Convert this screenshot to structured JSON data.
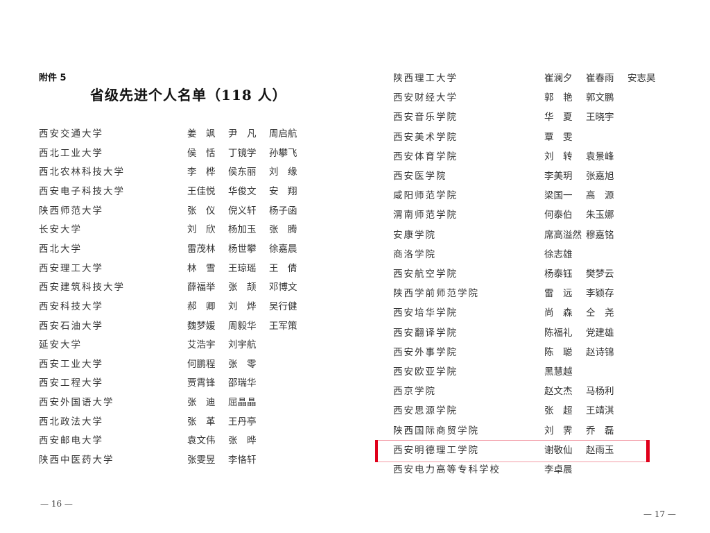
{
  "left_page": {
    "attachment": "附件 5",
    "title": "省级先进个人名单（118 人）",
    "page_number": "— 16 —",
    "rows": [
      {
        "org": "西安交通大学",
        "names": [
          "姜　飒",
          "尹　凡",
          "周启航"
        ]
      },
      {
        "org": "西北工业大学",
        "names": [
          "侯　恬",
          "丁镜学",
          "孙攀飞"
        ]
      },
      {
        "org": "西北农林科技大学",
        "names": [
          "李　桦",
          "侯东丽",
          "刘　缘"
        ]
      },
      {
        "org": "西安电子科技大学",
        "names": [
          "王佳悦",
          "华俊文",
          "安　翔"
        ]
      },
      {
        "org": "陕西师范大学",
        "names": [
          "张　仪",
          "倪义轩",
          "杨子函"
        ]
      },
      {
        "org": "长安大学",
        "names": [
          "刘　欣",
          "杨加玉",
          "张　腾"
        ]
      },
      {
        "org": "西北大学",
        "names": [
          "雷茂林",
          "杨世攀",
          "徐嘉晨"
        ]
      },
      {
        "org": "西安理工大学",
        "names": [
          "林　雪",
          "王琼瑶",
          "王　倩"
        ]
      },
      {
        "org": "西安建筑科技大学",
        "names": [
          "薛福举",
          "张　颉",
          "邓博文"
        ]
      },
      {
        "org": "西安科技大学",
        "names": [
          "郝　卿",
          "刘　烨",
          "吴行健"
        ]
      },
      {
        "org": "西安石油大学",
        "names": [
          "魏梦媛",
          "周毅华",
          "王军策"
        ]
      },
      {
        "org": "延安大学",
        "names": [
          "艾浩宇",
          "刘宇航"
        ]
      },
      {
        "org": "西安工业大学",
        "names": [
          "何鹏程",
          "张　零"
        ]
      },
      {
        "org": "西安工程大学",
        "names": [
          "贾霄锋",
          "邵瑞华"
        ]
      },
      {
        "org": "西安外国语大学",
        "names": [
          "张　迪",
          "屈晶晶"
        ]
      },
      {
        "org": "西北政法大学",
        "names": [
          "张　革",
          "王丹亭"
        ]
      },
      {
        "org": "西安邮电大学",
        "names": [
          "袁文伟",
          "张　晔"
        ]
      },
      {
        "org": "陕西中医药大学",
        "names": [
          "张雯昱",
          "李恪轩"
        ]
      }
    ]
  },
  "right_page": {
    "page_number": "— 17 —",
    "highlight_color": "#e0001b",
    "rows": [
      {
        "org": "陕西理工大学",
        "names": [
          "崔澜夕",
          "崔春雨",
          "安志昊"
        ]
      },
      {
        "org": "西安财经大学",
        "names": [
          "郭　艳",
          "郭文鹏"
        ]
      },
      {
        "org": "西安音乐学院",
        "names": [
          "华　夏",
          "王晓宇"
        ]
      },
      {
        "org": "西安美术学院",
        "names": [
          "覃　雯"
        ]
      },
      {
        "org": "西安体育学院",
        "names": [
          "刘　转",
          "袁景峰"
        ]
      },
      {
        "org": "西安医学院",
        "names": [
          "李美玥",
          "张嘉旭"
        ]
      },
      {
        "org": "咸阳师范学院",
        "names": [
          "梁国一",
          "高　源"
        ]
      },
      {
        "org": "渭南师范学院",
        "names": [
          "何泰伯",
          "朱玉娜"
        ]
      },
      {
        "org": "安康学院",
        "names": [
          "席高溢然",
          "穆嘉铭"
        ]
      },
      {
        "org": "商洛学院",
        "names": [
          "徐志雄"
        ]
      },
      {
        "org": "西安航空学院",
        "names": [
          "杨泰钰",
          "樊梦云"
        ]
      },
      {
        "org": "陕西学前师范学院",
        "names": [
          "雷　远",
          "李颖存"
        ]
      },
      {
        "org": "西安培华学院",
        "names": [
          "尚　森",
          "仝　尧"
        ]
      },
      {
        "org": "西安翻译学院",
        "names": [
          "陈福礼",
          "党建雄"
        ]
      },
      {
        "org": "西安外事学院",
        "names": [
          "陈　聪",
          "赵诗锦"
        ]
      },
      {
        "org": "西安欧亚学院",
        "names": [
          "黑慧越"
        ]
      },
      {
        "org": "西京学院",
        "names": [
          "赵文杰",
          "马杨利"
        ]
      },
      {
        "org": "西安思源学院",
        "names": [
          "张　超",
          "王靖淇"
        ]
      },
      {
        "org": "陕西国际商贸学院",
        "names": [
          "刘　霁",
          "乔　磊"
        ]
      },
      {
        "org": "西安明德理工学院",
        "names": [
          "谢敬仙",
          "赵雨玉"
        ],
        "highlighted": true
      },
      {
        "org": "西安电力高等专科学校",
        "names": [
          "李卓晨"
        ]
      }
    ]
  }
}
